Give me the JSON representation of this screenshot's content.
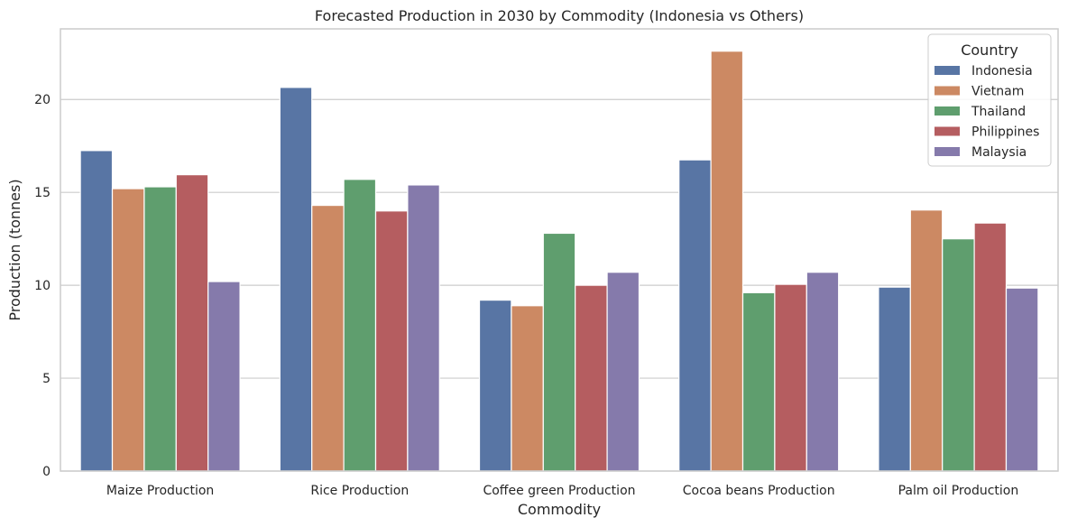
{
  "chart_data": {
    "type": "bar",
    "title": "Forecasted Production in 2030 by Commodity (Indonesia vs Others)",
    "xlabel": "Commodity",
    "ylabel": "Production (tonnes)",
    "ylim": [
      0,
      23.8
    ],
    "yticks": [
      0,
      5,
      10,
      15,
      20
    ],
    "grid": "horizontal",
    "legend": {
      "title": "Country",
      "placement": "top-right"
    },
    "categories": [
      "Maize Production",
      "Rice Production",
      "Coffee green Production",
      "Cocoa beans Production",
      "Palm oil Production"
    ],
    "series": [
      {
        "name": "Indonesia",
        "color": "#5875a4",
        "values": [
          17.25,
          20.65,
          9.2,
          16.75,
          9.9
        ]
      },
      {
        "name": "Vietnam",
        "color": "#cc8963",
        "values": [
          15.2,
          14.3,
          8.9,
          22.6,
          14.05
        ]
      },
      {
        "name": "Thailand",
        "color": "#5f9e6e",
        "values": [
          15.3,
          15.7,
          12.8,
          9.6,
          12.5
        ]
      },
      {
        "name": "Philippines",
        "color": "#b55d60",
        "values": [
          15.95,
          14.0,
          10.0,
          10.05,
          13.35
        ]
      },
      {
        "name": "Malaysia",
        "color": "#857aab",
        "values": [
          10.2,
          15.4,
          10.7,
          10.7,
          9.85
        ]
      }
    ]
  }
}
